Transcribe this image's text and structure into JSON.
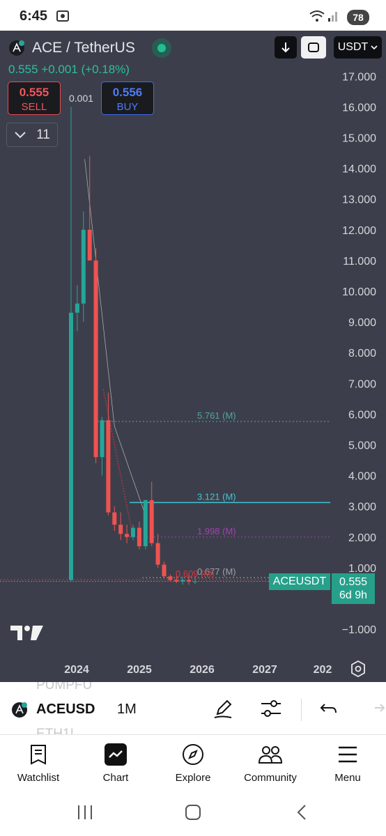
{
  "status": {
    "time": "6:45",
    "battery": "78"
  },
  "chart": {
    "symbol": "ACE / TetherUS",
    "price_line": {
      "last": "0.555",
      "change": "+0.001",
      "change_pct": "(+0.18%)"
    },
    "sell": {
      "price": "0.555",
      "label": "SELL"
    },
    "buy": {
      "price": "0.556",
      "label": "BUY"
    },
    "spread": "0.001",
    "indicators_count": "11",
    "currency": "USDT",
    "price_axis": [
      "17.000",
      "16.000",
      "15.000",
      "14.000",
      "13.000",
      "12.000",
      "11.000",
      "10.000",
      "9.000",
      "8.000",
      "7.000",
      "6.000",
      "5.000",
      "4.000",
      "3.000",
      "2.000",
      "1.000",
      "−1.000"
    ],
    "time_axis": [
      "2024",
      "2025",
      "2026",
      "2027",
      "202"
    ],
    "levels": [
      {
        "label": "5.761 (M)",
        "value": 5.761,
        "color": "#4fa7a2"
      },
      {
        "label": "3.121 (M)",
        "value": 3.121,
        "color": "#3fc6d6"
      },
      {
        "label": "1.998 (M)",
        "value": 1.998,
        "color": "#a53fb0"
      },
      {
        "label": "0.677 (M)",
        "value": 0.677,
        "color": "#9aa1a6"
      },
      {
        "label": "0.609 (M)",
        "value": 0.609,
        "color": "#e0333b"
      }
    ],
    "tag_symbol": "ACEUSDT",
    "tag_price": "0.555",
    "tag_countdown": "6d 9h",
    "candles_color_up": "#26a69a",
    "candles_color_down": "#ef5350"
  },
  "chart_data": {
    "type": "candlestick",
    "x": [
      "2023-11",
      "2023-12",
      "2024-01",
      "2024-02",
      "2024-03",
      "2024-04",
      "2024-05",
      "2024-06",
      "2024-07",
      "2024-08",
      "2024-09",
      "2024-10",
      "2024-11",
      "2024-12",
      "2025-01",
      "2025-02",
      "2025-03",
      "2025-04",
      "2025-05",
      "2025-06",
      "2025-07"
    ],
    "open": [
      0.6,
      9.3,
      9.6,
      12.0,
      11.0,
      4.6,
      5.8,
      2.8,
      2.4,
      2.1,
      2.0,
      2.3,
      1.7,
      3.2,
      1.8,
      1.1,
      0.72,
      0.6,
      0.55,
      0.6,
      0.55
    ],
    "high": [
      16.0,
      10.2,
      12.6,
      14.4,
      11.4,
      5.9,
      6.7,
      3.0,
      2.8,
      2.4,
      2.4,
      2.5,
      3.2,
      3.8,
      2.1,
      1.2,
      0.78,
      0.72,
      0.7,
      0.74,
      0.66
    ],
    "low": [
      0.55,
      8.7,
      9.0,
      11.0,
      4.4,
      4.0,
      2.7,
      2.2,
      1.9,
      1.8,
      1.9,
      1.6,
      1.6,
      1.7,
      1.0,
      0.65,
      0.55,
      0.5,
      0.45,
      0.45,
      0.47
    ],
    "close": [
      9.3,
      9.6,
      12.0,
      11.0,
      4.6,
      5.8,
      2.8,
      2.4,
      2.1,
      2.0,
      2.3,
      1.7,
      3.2,
      1.8,
      1.1,
      0.72,
      0.6,
      0.55,
      0.6,
      0.55,
      0.555
    ],
    "ylim": [
      -1.0,
      17.5
    ],
    "grid": false
  },
  "toolbar": {
    "symbol": "ACEUSD",
    "ghost_above": "PUMPFU",
    "ghost_below": "ETH1!",
    "interval": "1M"
  },
  "nav": [
    {
      "label": "Watchlist"
    },
    {
      "label": "Chart"
    },
    {
      "label": "Explore"
    },
    {
      "label": "Community"
    },
    {
      "label": "Menu"
    }
  ]
}
